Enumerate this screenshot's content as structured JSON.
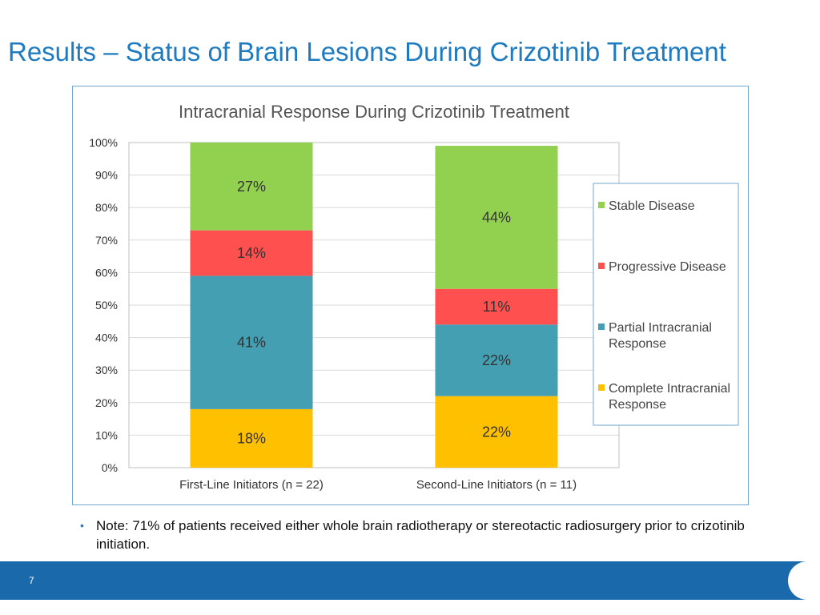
{
  "slide": {
    "title": "Results – Status of Brain Lesions During Crizotinib Treatment",
    "note_bullet": "•",
    "note": "Note: 71% of patients received either whole brain radiotherapy or stereotactic radiosurgery prior to crizotinib initiation.",
    "page_number": "7"
  },
  "colors": {
    "title": "#1f7bbf",
    "footer": "#1a6aab",
    "frame_border": "#6fa8cf"
  },
  "chart_data": {
    "type": "bar",
    "stacked": true,
    "title": "Intracranial Response During Crizotinib Treatment",
    "categories": [
      "First-Line Initiators (n = 22)",
      "Second-Line Initiators (n = 11)"
    ],
    "series": [
      {
        "name": "Complete Intracranial Response",
        "color": "#ffc000",
        "values": [
          18,
          22
        ],
        "labels": [
          "18%",
          "22%"
        ]
      },
      {
        "name": "Partial Intracranial Response",
        "color": "#449fb2",
        "values": [
          41,
          22
        ],
        "labels": [
          "41%",
          "22%"
        ]
      },
      {
        "name": "Progressive Disease",
        "color": "#ff5050",
        "values": [
          14,
          11
        ],
        "labels": [
          "14%",
          "11%"
        ]
      },
      {
        "name": "Stable Disease",
        "color": "#92d050",
        "values": [
          27,
          44
        ],
        "labels": [
          "27%",
          "44%"
        ]
      }
    ],
    "legend_order": [
      "Stable Disease",
      "Progressive Disease",
      "Partial Intracranial Response",
      "Complete Intracranial Response"
    ],
    "legend_lines": {
      "Stable Disease": [
        "Stable Disease"
      ],
      "Progressive Disease": [
        "Progressive Disease"
      ],
      "Partial Intracranial Response": [
        "Partial Intracranial",
        "Response"
      ],
      "Complete Intracranial Response": [
        "Complete Intracranial",
        "Response"
      ]
    },
    "legend_position": "right",
    "ylim": [
      0,
      100
    ],
    "yticks": [
      0,
      10,
      20,
      30,
      40,
      50,
      60,
      70,
      80,
      90,
      100
    ],
    "ytick_labels": [
      "0%",
      "10%",
      "20%",
      "30%",
      "40%",
      "50%",
      "60%",
      "70%",
      "80%",
      "90%",
      "100%"
    ],
    "grid": true
  }
}
